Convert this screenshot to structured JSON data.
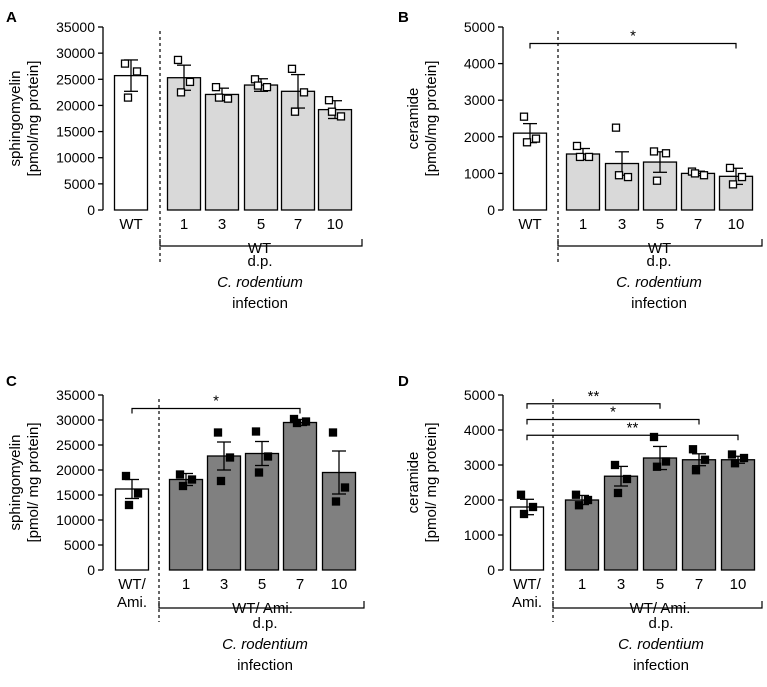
{
  "chart_data": [
    {
      "panel": "A",
      "type": "bar",
      "ylabel_line1": "sphingomyelin",
      "ylabel_line2": "[pmol/mg protein]",
      "ylim": [
        0,
        35000
      ],
      "yticks": [
        "0",
        "5000",
        "10000",
        "15000",
        "20000",
        "25000",
        "30000",
        "35000"
      ],
      "yticks_values": [
        0,
        5000,
        10000,
        15000,
        20000,
        25000,
        30000,
        35000
      ],
      "categories": [
        "WT",
        "1",
        "3",
        "5",
        "7",
        "10"
      ],
      "values": [
        25700,
        25300,
        22100,
        23900,
        22700,
        19200
      ],
      "sem": [
        3000,
        2400,
        1200,
        1200,
        3200,
        1700
      ],
      "points": [
        [
          28000,
          26500,
          21500
        ],
        [
          28700,
          24500,
          22500
        ],
        [
          23500,
          21300,
          21500
        ],
        [
          25000,
          23500,
          23800
        ],
        [
          27000,
          22500,
          18800
        ],
        [
          21000,
          17900,
          18800
        ]
      ],
      "point_marker": "open-square",
      "fills": [
        "#ffffff",
        "#d9d9d9",
        "#d9d9d9",
        "#d9d9d9",
        "#d9d9d9",
        "#d9d9d9"
      ],
      "group_label": "WT",
      "caption_line1": "d.p.",
      "caption_line2": "C. rodentium",
      "caption_line3": "infection",
      "significance": []
    },
    {
      "panel": "B",
      "type": "bar",
      "ylabel_line1": "ceramide",
      "ylabel_line2": "[pmol/mg protein]",
      "ylim": [
        0,
        5000
      ],
      "yticks": [
        "0",
        "1000",
        "2000",
        "3000",
        "4000",
        "5000"
      ],
      "yticks_values": [
        0,
        1000,
        2000,
        3000,
        4000,
        5000
      ],
      "categories": [
        "WT",
        "1",
        "3",
        "5",
        "7",
        "10"
      ],
      "values": [
        2100,
        1530,
        1270,
        1310,
        1000,
        920
      ],
      "sem": [
        260,
        150,
        320,
        280,
        60,
        220
      ],
      "points": [
        [
          2550,
          1950,
          1850
        ],
        [
          1750,
          1450,
          1450
        ],
        [
          2250,
          900,
          950
        ],
        [
          1600,
          1550,
          800
        ],
        [
          1050,
          950,
          1000
        ],
        [
          1150,
          900,
          700
        ]
      ],
      "point_marker": "open-square",
      "fills": [
        "#ffffff",
        "#d9d9d9",
        "#d9d9d9",
        "#d9d9d9",
        "#d9d9d9",
        "#d9d9d9"
      ],
      "group_label": "WT",
      "caption_line1": "d.p.",
      "caption_line2": "C. rodentium",
      "caption_line3": "infection",
      "significance": [
        {
          "from": 0,
          "to": 5,
          "y": 4550,
          "label": "*"
        }
      ]
    },
    {
      "panel": "C",
      "type": "bar",
      "ylabel_line1": "sphingomyelin",
      "ylabel_line2": "[pmol/ mg protein]",
      "ylim": [
        0,
        35000
      ],
      "yticks": [
        "0",
        "5000",
        "10000",
        "15000",
        "20000",
        "25000",
        "30000",
        "35000"
      ],
      "yticks_values": [
        0,
        5000,
        10000,
        15000,
        20000,
        25000,
        30000,
        35000
      ],
      "categories": [
        "WT/ Ami.",
        "1",
        "3",
        "5",
        "7",
        "10"
      ],
      "values": [
        16200,
        18100,
        22800,
        23300,
        29500,
        19500
      ],
      "sem": [
        1900,
        1200,
        2800,
        2400,
        600,
        4300
      ],
      "points": [
        [
          18800,
          15300,
          13000
        ],
        [
          19100,
          18100,
          16800
        ],
        [
          27500,
          22500,
          17800
        ],
        [
          27700,
          22700,
          19500
        ],
        [
          30200,
          29700,
          29400
        ],
        [
          27500,
          16500,
          13700
        ]
      ],
      "point_marker": "filled-square",
      "fills": [
        "#ffffff",
        "#808080",
        "#808080",
        "#808080",
        "#808080",
        "#808080"
      ],
      "group_label": "WT/ Ami.",
      "caption_line1": "d.p.",
      "caption_line2": "C. rodentium",
      "caption_line3": "infection",
      "significance": [
        {
          "from": 0,
          "to": 4,
          "y": 32300,
          "label": "*"
        }
      ]
    },
    {
      "panel": "D",
      "type": "bar",
      "ylabel_line1": "ceramide",
      "ylabel_line2": "[pmol/ mg protein]",
      "ylim": [
        0,
        5000
      ],
      "yticks": [
        "0",
        "1000",
        "2000",
        "3000",
        "4000",
        "5000"
      ],
      "yticks_values": [
        0,
        1000,
        2000,
        3000,
        4000,
        5000
      ],
      "categories": [
        "WT/ Ami.",
        "1",
        "3",
        "5",
        "7",
        "10"
      ],
      "values": [
        1800,
        2000,
        2680,
        3200,
        3150,
        3150
      ],
      "sem": [
        220,
        130,
        280,
        330,
        170,
        100
      ],
      "points": [
        [
          2150,
          1800,
          1600
        ],
        [
          2150,
          2000,
          1850
        ],
        [
          3000,
          2600,
          2200
        ],
        [
          3800,
          3100,
          2950
        ],
        [
          3450,
          3150,
          2850
        ],
        [
          3300,
          3200,
          3050
        ]
      ],
      "point_marker": "filled-square",
      "fills": [
        "#ffffff",
        "#808080",
        "#808080",
        "#808080",
        "#808080",
        "#808080"
      ],
      "group_label": "WT/ Ami.",
      "caption_line1": "d.p.",
      "caption_line2": "C. rodentium",
      "caption_line3": "infection",
      "significance": [
        {
          "from": 0,
          "to": 3,
          "y": 4750,
          "label": "**"
        },
        {
          "from": 0,
          "to": 4,
          "y": 4300,
          "label": "*"
        },
        {
          "from": 0,
          "to": 5,
          "y": 3850,
          "label": "**"
        }
      ]
    }
  ]
}
